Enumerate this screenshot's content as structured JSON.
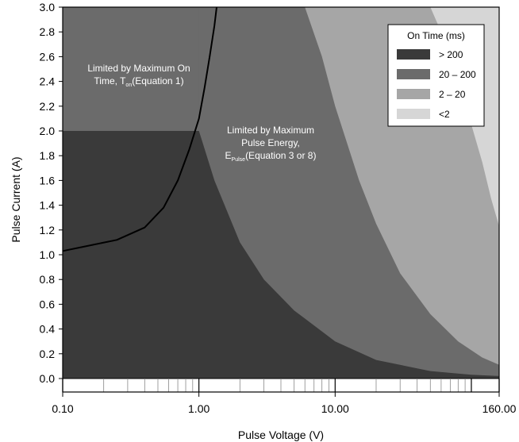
{
  "chart_data": {
    "type": "area",
    "x_scale": "log",
    "x_range": [
      0.1,
      160
    ],
    "y_range": [
      0,
      3.0
    ],
    "xlabel": "Pulse Voltage (V)",
    "ylabel": "Pulse Current (A)",
    "x_tick_labels": [
      "0.10",
      "1.00",
      "10.00",
      "160.00"
    ],
    "x_tick_values": [
      0.1,
      1,
      10,
      160
    ],
    "y_ticks": [
      0.0,
      0.2,
      0.4,
      0.6,
      0.8,
      1.0,
      1.2,
      1.4,
      1.6,
      1.8,
      2.0,
      2.2,
      2.4,
      2.6,
      2.8,
      3.0
    ],
    "grid": false,
    "legend": {
      "title": "On Time (ms)",
      "placement": "top-right",
      "items": [
        {
          "label": "> 200",
          "color": "#3a3a3a"
        },
        {
          "label": "20 – 200",
          "color": "#6b6b6b"
        },
        {
          "label": "2 – 20",
          "color": "#a6a6a6"
        },
        {
          "label": "<2",
          "color": "#d6d6d6"
        }
      ]
    },
    "regions": [
      {
        "label": "> 200",
        "color": "#3a3a3a",
        "upper_boundary": [
          [
            0.1,
            2.0
          ],
          [
            1.0,
            2.0
          ],
          [
            1.3,
            1.6
          ],
          [
            2.0,
            1.1
          ],
          [
            3.0,
            0.8
          ],
          [
            5.0,
            0.55
          ],
          [
            10.0,
            0.3
          ],
          [
            20.0,
            0.15
          ],
          [
            50.0,
            0.06
          ],
          [
            100.0,
            0.03
          ],
          [
            160.0,
            0.02
          ]
        ]
      },
      {
        "label": "20 – 200",
        "color": "#6b6b6b",
        "upper_boundary": [
          [
            0.1,
            3.0
          ],
          [
            6.0,
            3.0
          ],
          [
            8.0,
            2.6
          ],
          [
            10.0,
            2.2
          ],
          [
            15.0,
            1.6
          ],
          [
            20.0,
            1.25
          ],
          [
            30.0,
            0.85
          ],
          [
            50.0,
            0.52
          ],
          [
            80.0,
            0.3
          ],
          [
            120.0,
            0.17
          ],
          [
            160.0,
            0.11
          ]
        ]
      },
      {
        "label": "2 – 20",
        "color": "#a6a6a6",
        "upper_boundary": [
          [
            0.1,
            3.0
          ],
          [
            50.0,
            3.0
          ],
          [
            60.0,
            2.8
          ],
          [
            80.0,
            2.4
          ],
          [
            100.0,
            2.05
          ],
          [
            120.0,
            1.75
          ],
          [
            140.0,
            1.45
          ],
          [
            160.0,
            1.23
          ]
        ]
      },
      {
        "label": "<2",
        "color": "#d6d6d6",
        "upper_boundary": [
          [
            0.1,
            3.0
          ],
          [
            160.0,
            3.0
          ]
        ]
      }
    ],
    "limit_boxes": [
      {
        "label": "Limited by Maximum On Time",
        "color": "#6b6b6b",
        "x_range": [
          0.1,
          1.0
        ],
        "y_range": [
          2.0,
          3.0
        ]
      }
    ],
    "limit_curve": {
      "color": "#000000",
      "points": [
        [
          0.1,
          1.03
        ],
        [
          0.15,
          1.07
        ],
        [
          0.25,
          1.12
        ],
        [
          0.4,
          1.22
        ],
        [
          0.55,
          1.38
        ],
        [
          0.7,
          1.6
        ],
        [
          0.85,
          1.85
        ],
        [
          1.0,
          2.1
        ],
        [
          1.1,
          2.35
        ],
        [
          1.2,
          2.6
        ],
        [
          1.3,
          2.85
        ],
        [
          1.35,
          3.0
        ]
      ]
    },
    "annotations": [
      {
        "id": "on_time",
        "lines": [
          [
            "Limited by Maximum On"
          ],
          [
            "Time, T",
            [
              "on"
            ],
            "(Equation 1)"
          ]
        ]
      },
      {
        "id": "pulse_energy",
        "lines": [
          [
            "Limited by Maximum"
          ],
          [
            "Pulse Energy,"
          ],
          [
            "E",
            [
              "Pulse"
            ],
            "(Equation 3 or 8)"
          ]
        ]
      }
    ]
  }
}
